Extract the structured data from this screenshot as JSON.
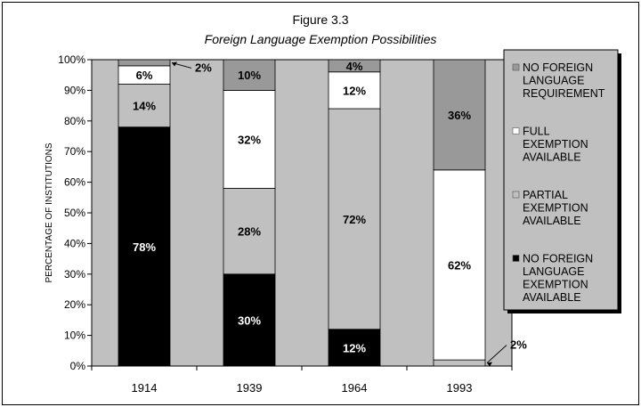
{
  "figure": {
    "title": "Figure 3.3",
    "subtitle": "Foreign Language Exemption Possibilities"
  },
  "chart_data": {
    "type": "bar",
    "stacked": true,
    "ylabel": "PERCENTAGE OF INSTITUTIONS",
    "xlabel": "",
    "ylim": [
      0,
      100
    ],
    "yticks": [
      "0%",
      "10%",
      "20%",
      "30%",
      "40%",
      "50%",
      "60%",
      "70%",
      "80%",
      "90%",
      "100%"
    ],
    "categories": [
      "1914",
      "1939",
      "1964",
      "1993"
    ],
    "legend_position": "right",
    "grid": false,
    "series": [
      {
        "name": "NO FOREIGN LANGUAGE EXEMPTION AVAILABLE",
        "legend_lines": [
          "NO FOREIGN",
          "LANGUAGE",
          "EXEMPTION",
          "AVAILABLE"
        ],
        "color": "#000000",
        "label_color": "#ffffff",
        "values": [
          78,
          30,
          12,
          0
        ],
        "labels": [
          "78%",
          "30%",
          "12%",
          ""
        ]
      },
      {
        "name": "PARTIAL EXEMPTION AVAILABLE",
        "legend_lines": [
          "PARTIAL",
          "EXEMPTION",
          "AVAILABLE"
        ],
        "color": "#c0c0c0",
        "label_color": "#000000",
        "values": [
          14,
          28,
          72,
          2
        ],
        "labels": [
          "14%",
          "28%",
          "72%",
          "2%"
        ]
      },
      {
        "name": "FULL EXEMPTION AVAILABLE",
        "legend_lines": [
          "FULL",
          "EXEMPTION",
          "AVAILABLE"
        ],
        "color": "#ffffff",
        "label_color": "#000000",
        "values": [
          6,
          32,
          12,
          62
        ],
        "labels": [
          "6%",
          "32%",
          "12%",
          "62%"
        ]
      },
      {
        "name": "NO FOREIGN LANGUAGE REQUIREMENT",
        "legend_lines": [
          "NO FOREIGN",
          "LANGUAGE",
          "REQUIREMENT"
        ],
        "color": "#999999",
        "label_color": "#000000",
        "values": [
          2,
          10,
          4,
          36
        ],
        "labels": [
          "2%",
          "10%",
          "4%",
          "36%"
        ]
      }
    ],
    "plot_background": "#c0c0c0"
  }
}
